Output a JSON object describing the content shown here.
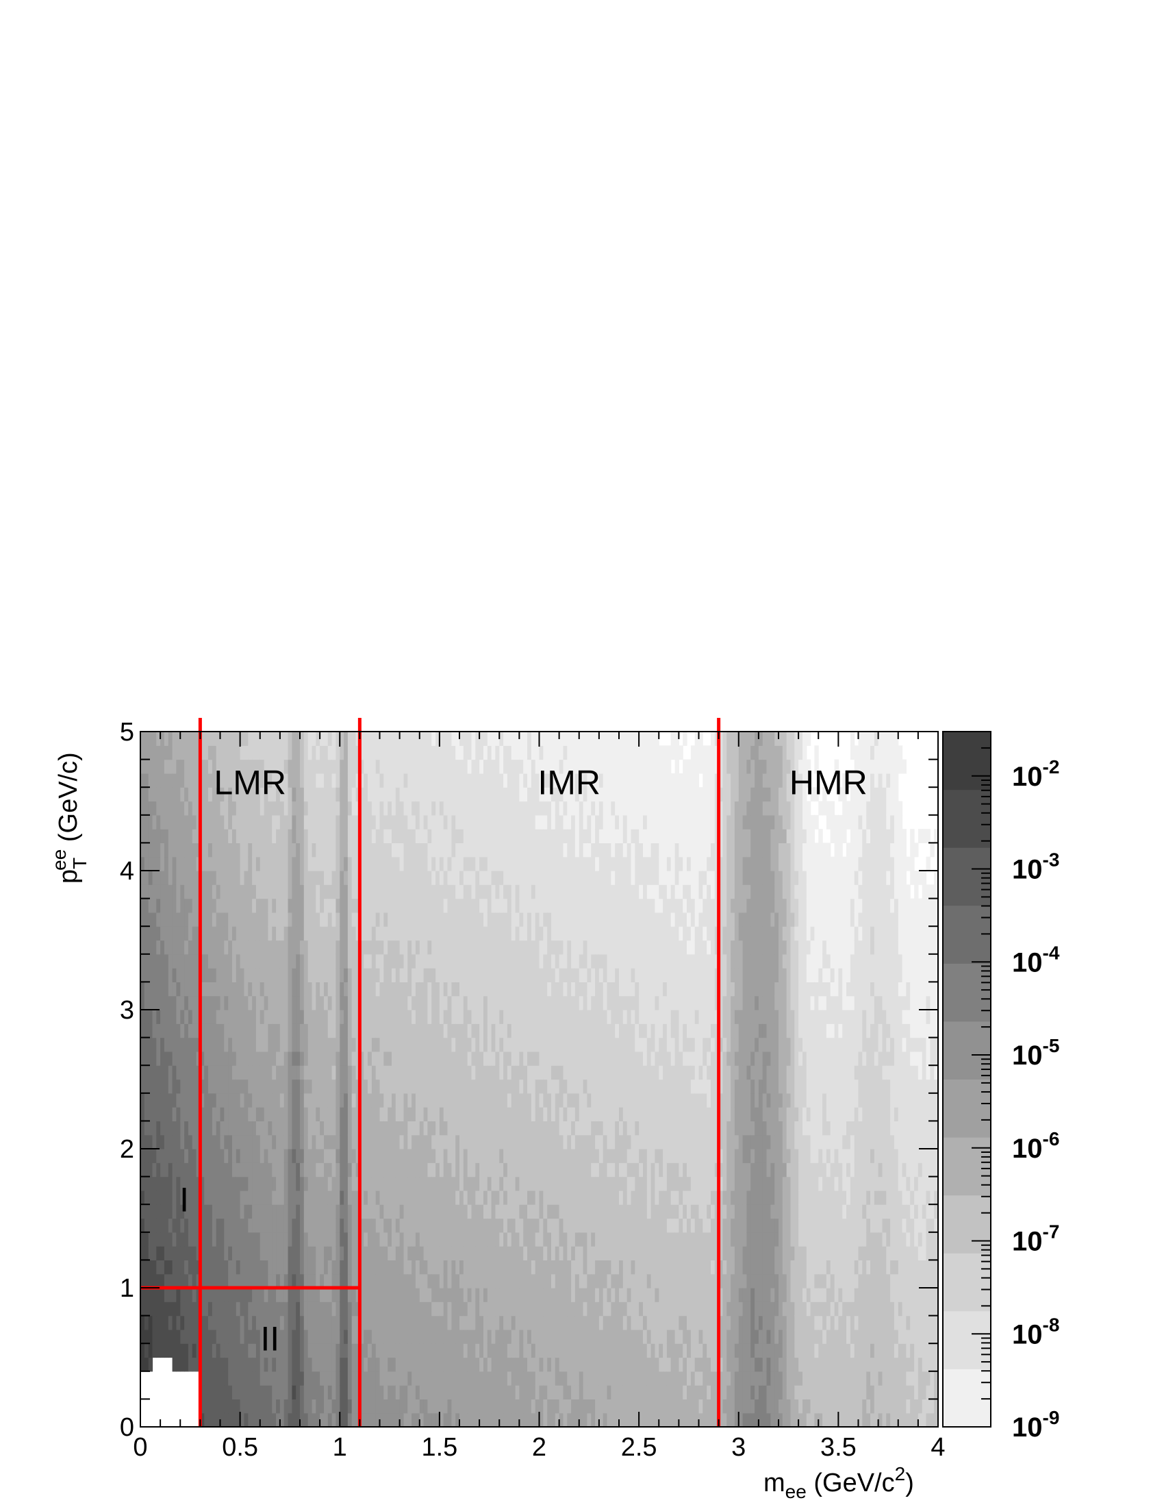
{
  "chart_data": {
    "type": "heatmap",
    "xlabel": {
      "base": "m",
      "sub": "ee",
      "rest": " (GeV/c",
      "sup": "2",
      "close": ")"
    },
    "ylabel": {
      "base": "p",
      "sub": "T",
      "sup": "ee",
      "rest": " (GeV/c)"
    },
    "xlim": [
      0,
      4
    ],
    "ylim": [
      0,
      5
    ],
    "x_ticks": [
      "0",
      "0.5",
      "1",
      "1.5",
      "2",
      "2.5",
      "3",
      "3.5",
      "4"
    ],
    "y_ticks": [
      "0",
      "1",
      "2",
      "3",
      "4",
      "5"
    ],
    "colorbar": {
      "scale": "log",
      "range": [
        1e-09,
        0.03
      ],
      "labels": [
        {
          "base": "10",
          "exp": "-9"
        },
        {
          "base": "10",
          "exp": "-8"
        },
        {
          "base": "10",
          "exp": "-7"
        },
        {
          "base": "10",
          "exp": "-6"
        },
        {
          "base": "10",
          "exp": "-5"
        },
        {
          "base": "10",
          "exp": "-4"
        },
        {
          "base": "10",
          "exp": "-3"
        },
        {
          "base": "10",
          "exp": "-2"
        }
      ],
      "levels": [
        "#f0f0f0",
        "#e0e0e0",
        "#d2d2d2",
        "#c2c2c2",
        "#b0b0b0",
        "#a0a0a0",
        "#919191",
        "#808080",
        "#6e6e6e",
        "#5e5e5e",
        "#4c4c4c",
        "#3e3e3e"
      ]
    },
    "boundary_color": "#ff0000",
    "region_labels": [
      {
        "text": "LMR",
        "x": 0.55,
        "y": 4.55
      },
      {
        "text": "IMR",
        "x": 2.15,
        "y": 4.55
      },
      {
        "text": "HMR",
        "x": 3.45,
        "y": 4.55
      },
      {
        "text": "I",
        "x": 0.22,
        "y": 1.55
      },
      {
        "text": "II",
        "x": 0.65,
        "y": 0.55
      }
    ],
    "boundaries": {
      "vertical": [
        {
          "x": 0.3,
          "y0": 0,
          "y1": 5
        },
        {
          "x": 1.1,
          "y0": 0,
          "y1": 5
        },
        {
          "x": 2.9,
          "y0": 0,
          "y1": 5
        }
      ],
      "horizontal": [
        {
          "y": 1.0,
          "x0": 0,
          "x1": 1.1
        }
      ]
    }
  }
}
